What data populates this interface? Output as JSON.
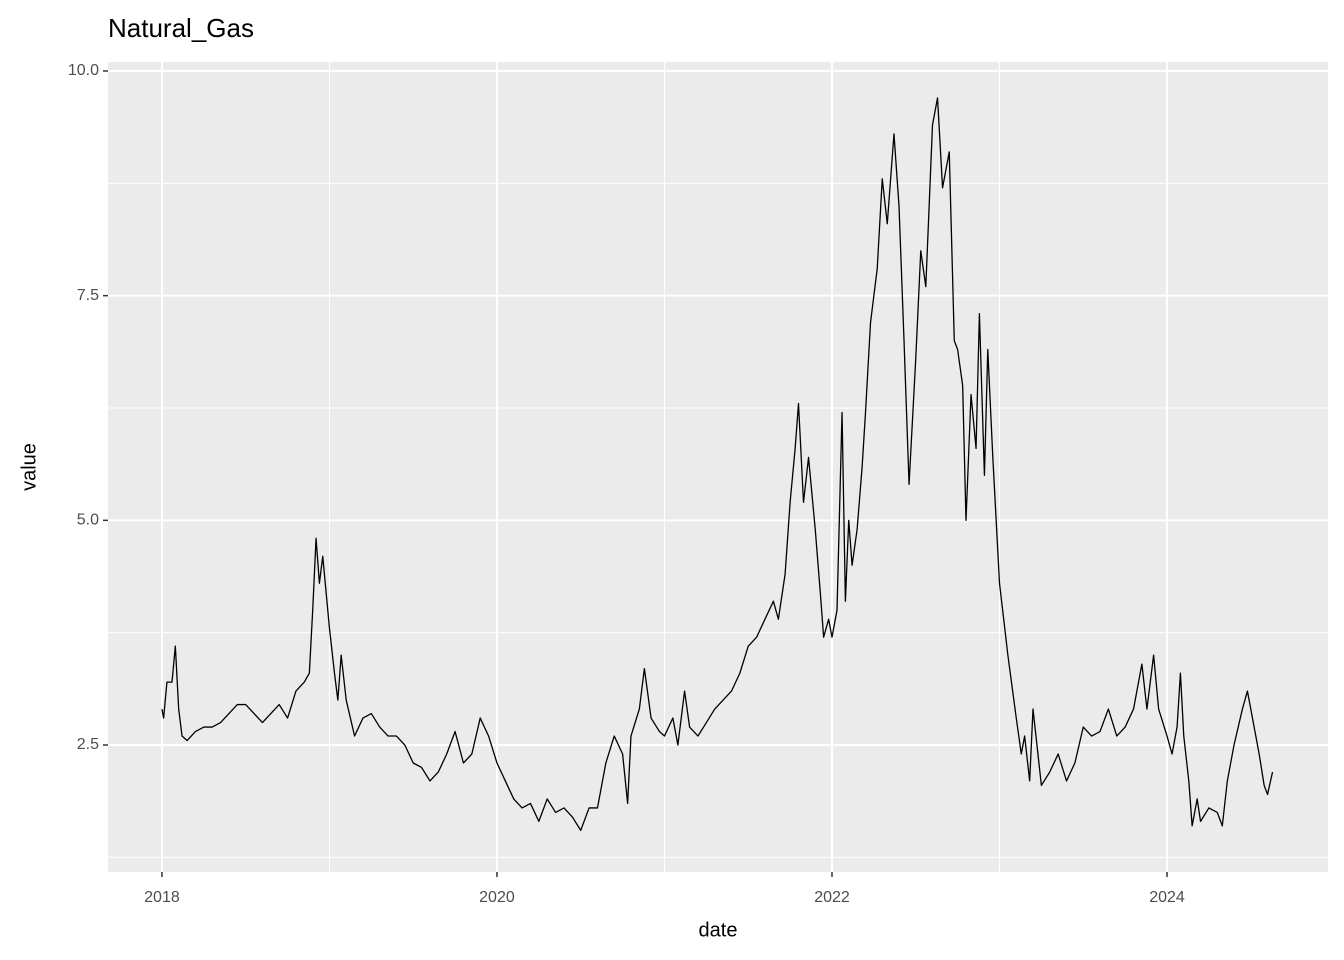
{
  "chart_data": {
    "type": "line",
    "title": "Natural_Gas",
    "x_label": "date",
    "y_label": "value",
    "color": "#000000",
    "grid": true,
    "xlim": [
      2017.678,
      2024.961
    ],
    "ylim": [
      1.087,
      10.1
    ],
    "xticks": [
      2018,
      2020,
      2022,
      2024
    ],
    "yticks": [
      2.5,
      {
        "value": 5,
        "label": "5.0"
      },
      7.5,
      {
        "value": 10,
        "label": "10.0"
      }
    ],
    "x": [
      2018.0,
      2018.01,
      2018.03,
      2018.06,
      2018.08,
      2018.1,
      2018.12,
      2018.15,
      2018.2,
      2018.25,
      2018.3,
      2018.35,
      2018.4,
      2018.45,
      2018.5,
      2018.55,
      2018.6,
      2018.65,
      2018.7,
      2018.75,
      2018.8,
      2018.85,
      2018.88,
      2018.9,
      2018.92,
      2018.94,
      2018.96,
      2019.0,
      2019.03,
      2019.05,
      2019.07,
      2019.1,
      2019.15,
      2019.2,
      2019.25,
      2019.3,
      2019.35,
      2019.4,
      2019.45,
      2019.5,
      2019.55,
      2019.6,
      2019.65,
      2019.7,
      2019.75,
      2019.8,
      2019.85,
      2019.9,
      2019.95,
      2020.0,
      2020.05,
      2020.1,
      2020.15,
      2020.2,
      2020.25,
      2020.3,
      2020.35,
      2020.4,
      2020.45,
      2020.5,
      2020.55,
      2020.6,
      2020.65,
      2020.7,
      2020.75,
      2020.78,
      2020.8,
      2020.85,
      2020.88,
      2020.92,
      2020.97,
      2021.0,
      2021.05,
      2021.08,
      2021.12,
      2021.15,
      2021.2,
      2021.25,
      2021.3,
      2021.35,
      2021.4,
      2021.45,
      2021.5,
      2021.55,
      2021.6,
      2021.65,
      2021.68,
      2021.72,
      2021.75,
      2021.78,
      2021.8,
      2021.83,
      2021.86,
      2021.9,
      2021.93,
      2021.95,
      2021.98,
      2022.0,
      2022.03,
      2022.06,
      2022.08,
      2022.1,
      2022.12,
      2022.15,
      2022.18,
      2022.2,
      2022.23,
      2022.27,
      2022.3,
      2022.33,
      2022.37,
      2022.4,
      2022.43,
      2022.46,
      2022.5,
      2022.53,
      2022.56,
      2022.6,
      2022.63,
      2022.66,
      2022.7,
      2022.73,
      2022.75,
      2022.78,
      2022.8,
      2022.83,
      2022.86,
      2022.88,
      2022.91,
      2022.93,
      2022.96,
      2023.0,
      2023.05,
      2023.1,
      2023.13,
      2023.15,
      2023.18,
      2023.2,
      2023.25,
      2023.3,
      2023.35,
      2023.4,
      2023.45,
      2023.5,
      2023.55,
      2023.6,
      2023.65,
      2023.7,
      2023.75,
      2023.8,
      2023.85,
      2023.88,
      2023.92,
      2023.95,
      2024.0,
      2024.03,
      2024.06,
      2024.08,
      2024.1,
      2024.13,
      2024.15,
      2024.18,
      2024.2,
      2024.25,
      2024.3,
      2024.33,
      2024.36,
      2024.4,
      2024.45,
      2024.48,
      2024.52,
      2024.55,
      2024.58,
      2024.6,
      2024.63
    ],
    "values": [
      2.9,
      2.8,
      3.2,
      3.2,
      3.6,
      2.9,
      2.6,
      2.55,
      2.65,
      2.7,
      2.7,
      2.75,
      2.85,
      2.95,
      2.95,
      2.85,
      2.75,
      2.85,
      2.95,
      2.8,
      3.1,
      3.2,
      3.3,
      4.0,
      4.8,
      4.3,
      4.6,
      3.8,
      3.3,
      3.0,
      3.5,
      3.0,
      2.6,
      2.8,
      2.85,
      2.7,
      2.6,
      2.6,
      2.5,
      2.3,
      2.25,
      2.1,
      2.2,
      2.4,
      2.65,
      2.3,
      2.4,
      2.8,
      2.6,
      2.3,
      2.1,
      1.9,
      1.8,
      1.85,
      1.65,
      1.9,
      1.75,
      1.8,
      1.7,
      1.55,
      1.8,
      1.8,
      2.3,
      2.6,
      2.4,
      1.85,
      2.6,
      2.9,
      3.35,
      2.8,
      2.65,
      2.6,
      2.8,
      2.5,
      3.1,
      2.7,
      2.6,
      2.75,
      2.9,
      3.0,
      3.1,
      3.3,
      3.6,
      3.7,
      3.9,
      4.1,
      3.9,
      4.4,
      5.2,
      5.8,
      6.3,
      5.2,
      5.7,
      4.9,
      4.2,
      3.7,
      3.9,
      3.7,
      4.0,
      6.2,
      4.1,
      5.0,
      4.5,
      4.9,
      5.6,
      6.2,
      7.2,
      7.8,
      8.8,
      8.3,
      9.3,
      8.5,
      7.0,
      5.4,
      6.8,
      8.0,
      7.6,
      9.4,
      9.7,
      8.7,
      9.1,
      7.0,
      6.9,
      6.5,
      5.0,
      6.4,
      5.8,
      7.3,
      5.5,
      6.9,
      5.7,
      4.3,
      3.5,
      2.8,
      2.4,
      2.6,
      2.1,
      2.9,
      2.05,
      2.2,
      2.4,
      2.1,
      2.3,
      2.7,
      2.6,
      2.65,
      2.9,
      2.6,
      2.7,
      2.9,
      3.4,
      2.9,
      3.5,
      2.9,
      2.6,
      2.4,
      2.7,
      3.3,
      2.6,
      2.1,
      1.6,
      1.9,
      1.65,
      1.8,
      1.75,
      1.6,
      2.1,
      2.5,
      2.9,
      3.1,
      2.7,
      2.4,
      2.05,
      1.95,
      2.2
    ]
  }
}
